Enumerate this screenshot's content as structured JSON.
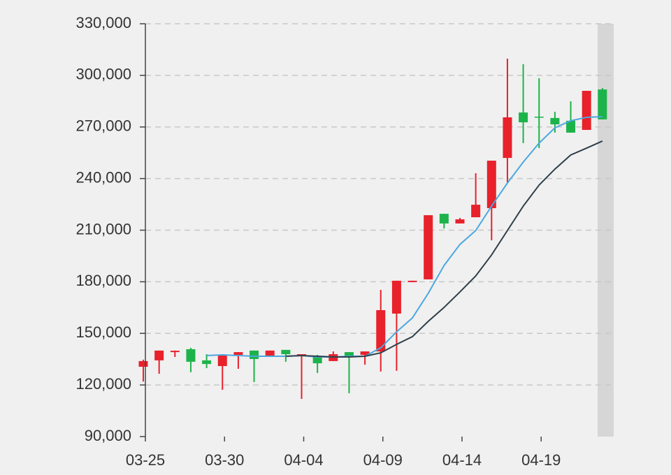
{
  "chart_data": {
    "type": "candlestick",
    "categories": [
      "03-25",
      null,
      null,
      null,
      null,
      "03-30",
      null,
      null,
      null,
      null,
      "04-04",
      null,
      null,
      null,
      null,
      "04-09",
      null,
      null,
      null,
      null,
      "04-14",
      null,
      null,
      null,
      null,
      "04-19",
      null,
      null,
      null,
      null
    ],
    "open": [
      130600,
      134300,
      139100,
      140800,
      134300,
      131000,
      137500,
      140000,
      136700,
      140400,
      136700,
      136700,
      133900,
      139100,
      137500,
      139500,
      161500,
      179800,
      181400,
      219500,
      213900,
      217500,
      222800,
      252000,
      278400,
      276000,
      275200,
      273600,
      268300,
      291800
    ],
    "close": [
      133900,
      140000,
      139900,
      133500,
      132200,
      137500,
      139100,
      135100,
      140000,
      137900,
      137900,
      132600,
      137900,
      136700,
      139500,
      163500,
      180600,
      180600,
      218700,
      213900,
      216300,
      224800,
      250400,
      275600,
      272700,
      275600,
      271500,
      266700,
      291000,
      274400
    ],
    "low": [
      122000,
      126500,
      136300,
      127400,
      129800,
      117200,
      129400,
      121700,
      136700,
      133500,
      111900,
      127000,
      133900,
      115200,
      131800,
      127800,
      128200,
      179800,
      181400,
      211000,
      213900,
      217500,
      204100,
      237400,
      260600,
      257700,
      266700,
      266700,
      268300,
      274400
    ],
    "high": [
      134700,
      140000,
      140000,
      141600,
      137900,
      137500,
      139100,
      140000,
      140000,
      140400,
      137900,
      137500,
      139500,
      139100,
      139500,
      175300,
      180600,
      180600,
      218700,
      219500,
      217100,
      243100,
      250400,
      309700,
      306500,
      298300,
      278800,
      284900,
      291000,
      292600
    ],
    "up_color": "#e8212b",
    "down_color": "#1db34b",
    "lines": [
      {
        "color": "#4aa8e0",
        "values": [
          null,
          null,
          null,
          null,
          137100,
          137500,
          137100,
          136700,
          136700,
          136700,
          137100,
          136300,
          136300,
          136700,
          136700,
          141600,
          150900,
          159000,
          173300,
          189500,
          201700,
          209800,
          224000,
          237400,
          249600,
          260600,
          269500,
          273600,
          275600,
          276000
        ]
      },
      {
        "color": "#2e3f4a",
        "values": [
          null,
          null,
          null,
          null,
          null,
          null,
          null,
          null,
          null,
          136700,
          137100,
          136700,
          136300,
          136300,
          136700,
          138700,
          143600,
          148100,
          157000,
          165100,
          174100,
          183400,
          195600,
          209800,
          224000,
          236200,
          245500,
          253700,
          257700,
          261800
        ]
      }
    ],
    "ylim": [
      90000,
      330000
    ],
    "yticks": [
      {
        "value": 90000,
        "label": "90,000"
      },
      {
        "value": 120000,
        "label": "120,000"
      },
      {
        "value": 150000,
        "label": "150,000"
      },
      {
        "value": 180000,
        "label": "180,000"
      },
      {
        "value": 210000,
        "label": "210,000"
      },
      {
        "value": 240000,
        "label": "240,000"
      },
      {
        "value": 270000,
        "label": "270,000"
      },
      {
        "value": 300000,
        "label": "300,000"
      },
      {
        "value": 330000,
        "label": "330,000"
      }
    ],
    "grid": true
  }
}
